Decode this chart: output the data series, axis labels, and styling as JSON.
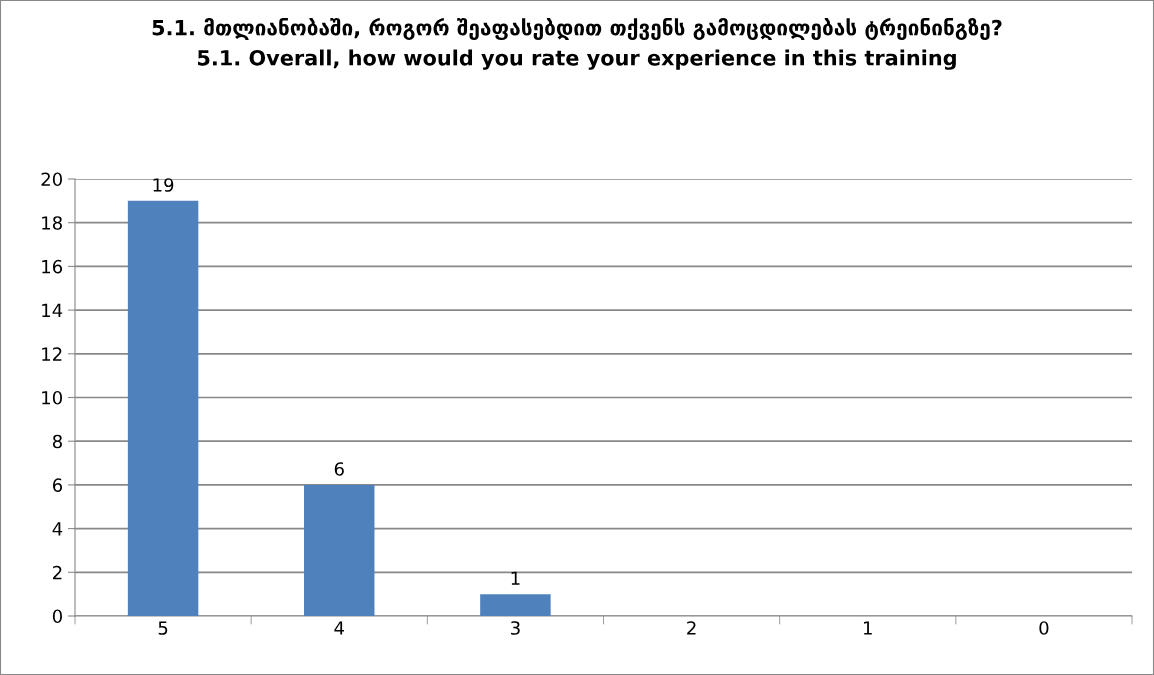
{
  "chart_data": {
    "type": "bar",
    "title": "5.1. მთლიანობაში, როგორ შეაფასებდით თქვენს გამოცდილებას ტრეინინგზე?\n5.1. Overall, how would you rate your experience in this training",
    "categories": [
      "5",
      "4",
      "3",
      "2",
      "1",
      "0"
    ],
    "values": [
      19,
      6,
      1,
      0,
      0,
      0
    ],
    "value_labels": [
      "19",
      "6",
      "1",
      null,
      null,
      null
    ],
    "color": "#4f81bd",
    "ylim": [
      0,
      20
    ],
    "yticks": [
      0,
      2,
      4,
      6,
      8,
      10,
      12,
      14,
      16,
      18,
      20
    ],
    "grid": "y",
    "legend": false
  }
}
